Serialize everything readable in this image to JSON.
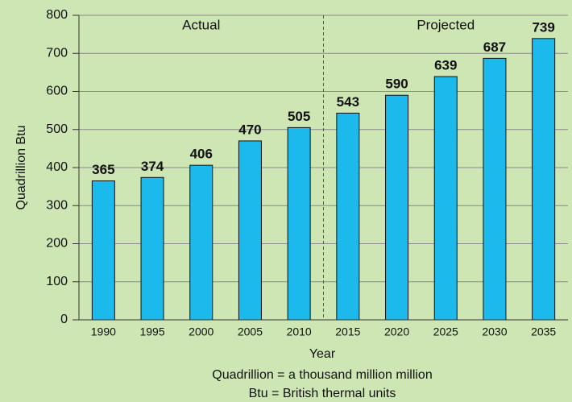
{
  "chart_data": {
    "type": "bar",
    "categories": [
      "1990",
      "1995",
      "2000",
      "2005",
      "2010",
      "2015",
      "2020",
      "2025",
      "2030",
      "2035"
    ],
    "values": [
      365,
      374,
      406,
      470,
      505,
      543,
      590,
      639,
      687,
      739
    ],
    "color": "#1cb9ec",
    "ylim": [
      0,
      800
    ],
    "yticks": [
      0,
      100,
      200,
      300,
      400,
      500,
      600,
      700,
      800
    ],
    "grid": true,
    "y_label": "Quadrillion Btu",
    "x_label": "Year",
    "annotations": [
      "Actual",
      "Projected"
    ],
    "notes": [
      "Quadrillion = a thousand million million",
      "Btu = British thermal units"
    ]
  }
}
